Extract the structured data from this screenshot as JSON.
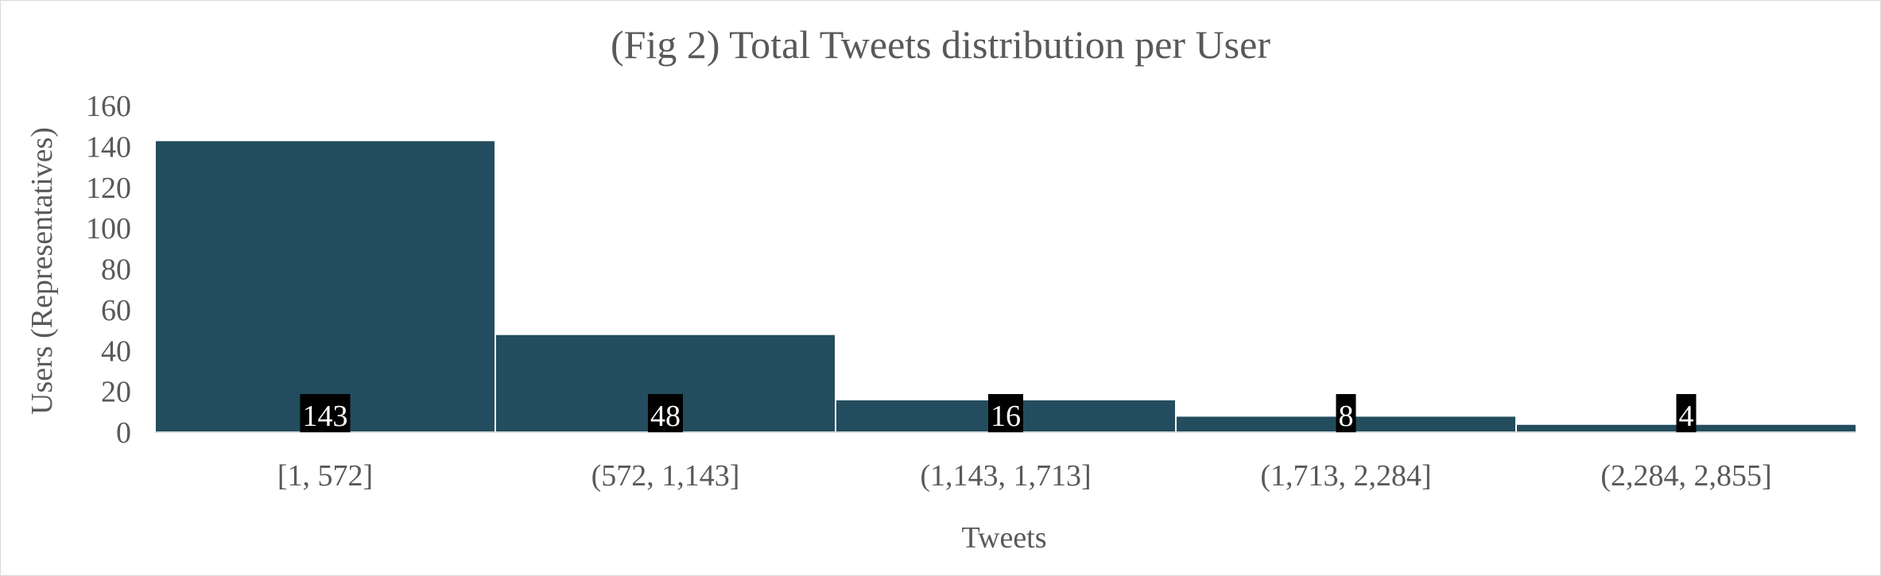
{
  "chart_data": {
    "type": "bar",
    "title": "(Fig 2) Total Tweets distribution per User",
    "xlabel": "Tweets",
    "ylabel": "Users (Representatives)",
    "categories": [
      "[1, 572]",
      "(572, 1,143]",
      "(1,143, 1,713]",
      "(1,713, 2,284]",
      "(2,284, 2,855]"
    ],
    "values": [
      143,
      48,
      16,
      8,
      4
    ],
    "ylim": [
      0,
      160
    ],
    "yticks": [
      0,
      20,
      40,
      60,
      80,
      100,
      120,
      140,
      160
    ],
    "grid": false,
    "legend": "none",
    "data_labels": true,
    "bar_color": "#234d5e",
    "label_background": "#000000",
    "label_color": "#ffffff"
  }
}
